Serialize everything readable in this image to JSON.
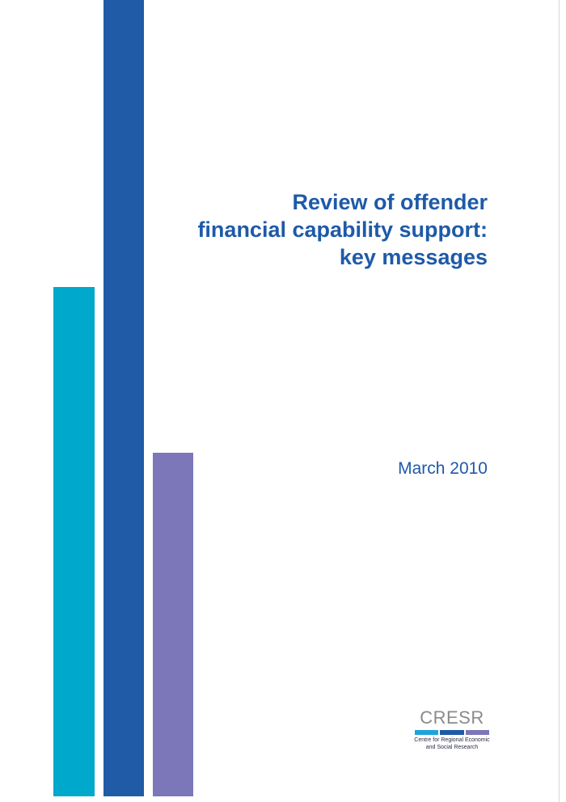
{
  "document": {
    "title_lines": [
      "Review of offender",
      "financial capability support:",
      "key messages"
    ],
    "date": "March 2010"
  },
  "logo": {
    "name": "CRESR",
    "subtitle_lines": [
      "Centre for Regional Economic",
      "and Social Research"
    ]
  },
  "colors": {
    "title": "#1e5aa8",
    "bar_cyan": "#00a8cc",
    "bar_blue": "#1f5ba6",
    "bar_violet": "#7b77b8",
    "logo_stripe_1": "#1ea3dc",
    "logo_stripe_2": "#1e5aa8",
    "logo_stripe_3": "#7b77b8"
  }
}
